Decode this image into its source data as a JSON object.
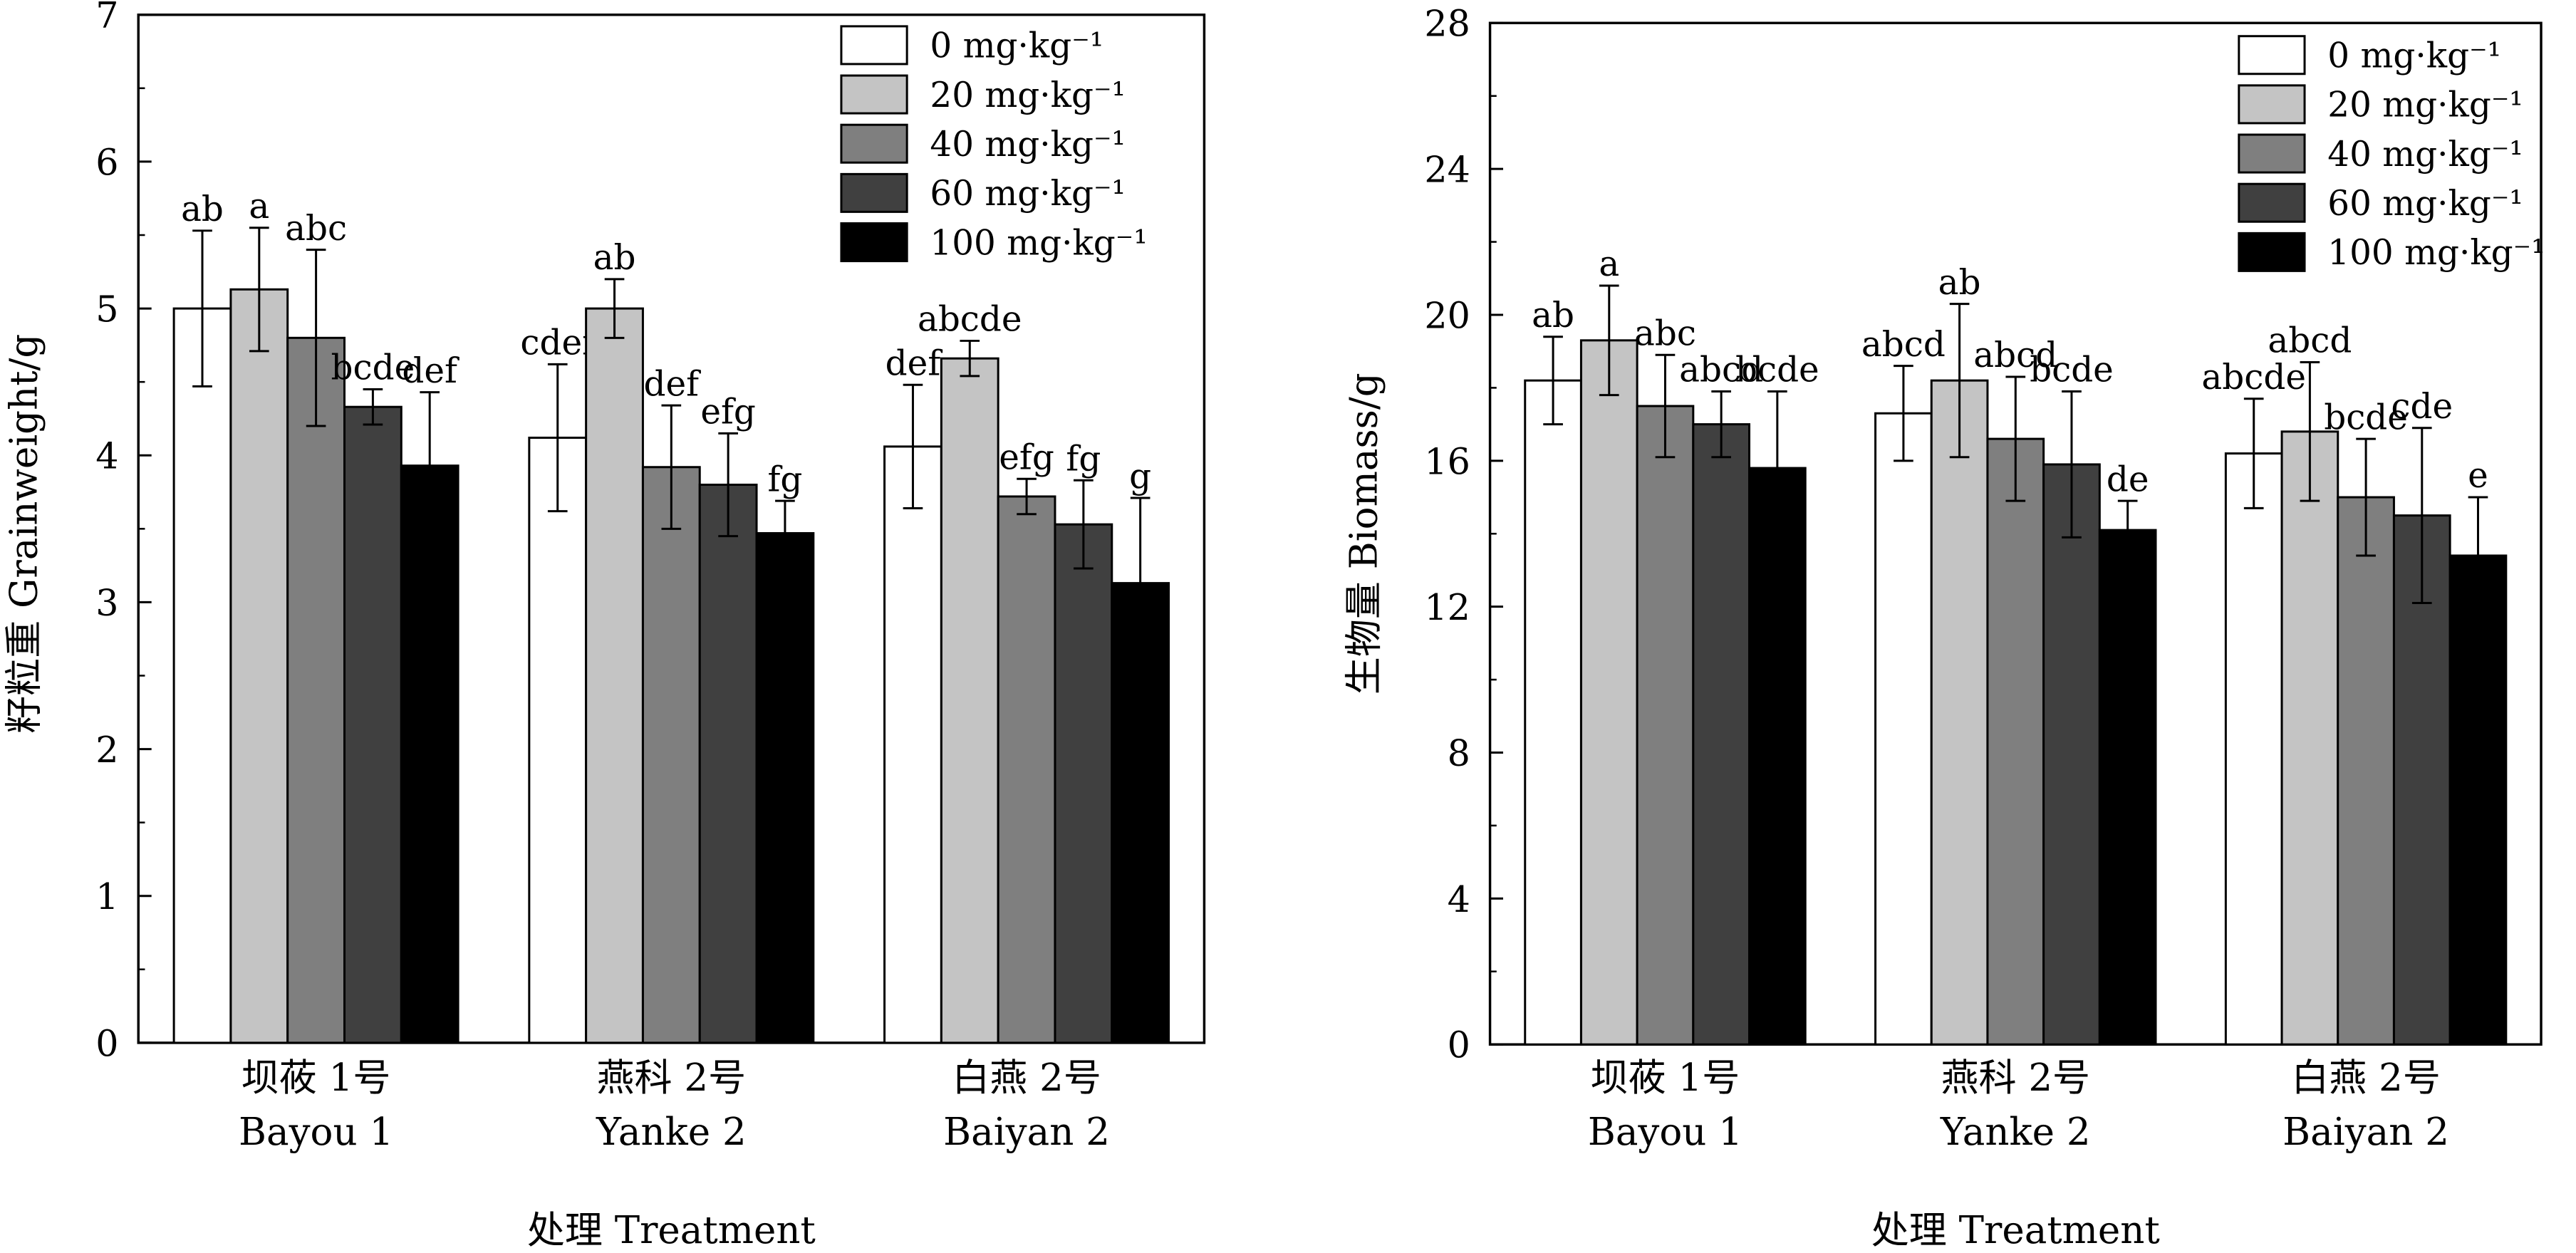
{
  "colors": {
    "series": [
      "#ffffff",
      "#c4c4c4",
      "#7f7f7f",
      "#404040",
      "#000000"
    ],
    "stroke": "#000000"
  },
  "chart_data": [
    {
      "type": "bar",
      "ylabel": "籽粒重 Grainweight/g",
      "xlabel": "处理 Treatment",
      "ylim": [
        0,
        7
      ],
      "yticks": [
        "0",
        "1",
        "2",
        "3",
        "4",
        "5",
        "6",
        "7"
      ],
      "categories": [
        {
          "cn": "坝莜 1号",
          "en": "Bayou 1"
        },
        {
          "cn": "燕科 2号",
          "en": "Yanke 2"
        },
        {
          "cn": "白燕 2号",
          "en": "Baiyan 2"
        }
      ],
      "legend_position": "top-right",
      "series": [
        {
          "name": "0 mg·kg⁻¹",
          "values": [
            5.0,
            4.12,
            4.06
          ],
          "errors": [
            0.53,
            0.5,
            0.42
          ],
          "letters": [
            "ab",
            "cdef",
            "def"
          ]
        },
        {
          "name": "20 mg·kg⁻¹",
          "values": [
            5.13,
            5.0,
            4.66
          ],
          "errors": [
            0.42,
            0.2,
            0.12
          ],
          "letters": [
            "a",
            "ab",
            "abcde"
          ]
        },
        {
          "name": "40 mg·kg⁻¹",
          "values": [
            4.8,
            3.92,
            3.72
          ],
          "errors": [
            0.6,
            0.42,
            0.12
          ],
          "letters": [
            "abc",
            "def",
            "efg"
          ]
        },
        {
          "name": "60 mg·kg⁻¹",
          "values": [
            4.33,
            3.8,
            3.53
          ],
          "errors": [
            0.12,
            0.35,
            0.3
          ],
          "letters": [
            "bcde",
            "efg",
            "fg"
          ]
        },
        {
          "name": "100 mg·kg⁻¹",
          "values": [
            3.93,
            3.47,
            3.13
          ],
          "errors": [
            0.5,
            0.22,
            0.58
          ],
          "letters": [
            "def",
            "fg",
            "g"
          ]
        }
      ]
    },
    {
      "type": "bar",
      "ylabel": "生物量 Biomass/g",
      "xlabel": "处理 Treatment",
      "ylim": [
        0,
        28
      ],
      "yticks": [
        "0",
        "4",
        "8",
        "12",
        "16",
        "20",
        "24",
        "28"
      ],
      "categories": [
        {
          "cn": "坝莜 1号",
          "en": "Bayou 1"
        },
        {
          "cn": "燕科 2号",
          "en": "Yanke 2"
        },
        {
          "cn": "白燕 2号",
          "en": "Baiyan 2"
        }
      ],
      "legend_position": "top-right",
      "series": [
        {
          "name": "0 mg·kg⁻¹",
          "values": [
            18.2,
            17.3,
            16.2
          ],
          "errors": [
            1.2,
            1.3,
            1.5
          ],
          "letters": [
            "ab",
            "abcd",
            "abcde"
          ]
        },
        {
          "name": "20 mg·kg⁻¹",
          "values": [
            19.3,
            18.2,
            16.8
          ],
          "errors": [
            1.5,
            2.1,
            1.9
          ],
          "letters": [
            "a",
            "ab",
            "abcd"
          ]
        },
        {
          "name": "40 mg·kg⁻¹",
          "values": [
            17.5,
            16.6,
            15.0
          ],
          "errors": [
            1.4,
            1.7,
            1.6
          ],
          "letters": [
            "abc",
            "abcd",
            "bcde"
          ]
        },
        {
          "name": "60 mg·kg⁻¹",
          "values": [
            17.0,
            15.9,
            14.5
          ],
          "errors": [
            0.9,
            2.0,
            2.4
          ],
          "letters": [
            "abcd",
            "bcde",
            "cde"
          ]
        },
        {
          "name": "100 mg·kg⁻¹",
          "values": [
            15.8,
            14.1,
            13.4
          ],
          "errors": [
            2.1,
            0.8,
            1.6
          ],
          "letters": [
            "bcde",
            "de",
            "e"
          ]
        }
      ]
    }
  ]
}
